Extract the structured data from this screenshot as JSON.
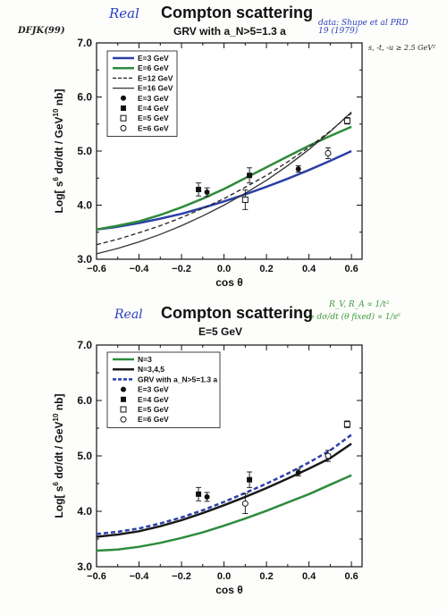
{
  "annotations": {
    "top_left": "DFJK(99)",
    "top_real": "Real",
    "top_right": "data: Shupe et al PRD 19 (1979)",
    "top_right2": "s, -t, -u ≥ 2.5 GeV²",
    "bottom_real": "Real",
    "bottom_right": "R_V, R_A ∝ 1/t²",
    "bottom_right2": "⇒ dσ/dt (θ fixed) ∝ 1/s⁶"
  },
  "chart_data": [
    {
      "type": "line",
      "title": "Compton scattering",
      "subtitle": "GRV with a_N>5=1.3 a",
      "xlabel": "cos θ",
      "ylabel": "Log[ s⁶ dσ/dt / GeV¹⁰ nb]",
      "xlim": [
        -0.6,
        0.65
      ],
      "ylim": [
        3.0,
        7.0
      ],
      "xticks": [
        "−0.6",
        "−0.4",
        "−0.2",
        "0.0",
        "0.2",
        "0.4",
        "0.6"
      ],
      "yticks": [
        "3.0",
        "4.0",
        "5.0",
        "6.0",
        "7.0"
      ],
      "legend_position": "top-left",
      "legend": [
        "E=3 GeV",
        "E=6 GeV",
        "E=12 GeV",
        "E=16 GeV",
        "E=3 GeV",
        "E=4 GeV",
        "E=5 GeV",
        "E=6 GeV"
      ],
      "x": [
        -0.6,
        -0.5,
        -0.4,
        -0.3,
        -0.2,
        -0.1,
        0.0,
        0.1,
        0.2,
        0.3,
        0.4,
        0.5,
        0.6
      ],
      "series": [
        {
          "name": "E=3 GeV",
          "style": "solid",
          "color": "#2b3fa8",
          "width": 2.5,
          "values": [
            3.55,
            3.6,
            3.67,
            3.75,
            3.84,
            3.95,
            4.07,
            4.2,
            4.34,
            4.49,
            4.65,
            4.82,
            5.0
          ]
        },
        {
          "name": "E=6 GeV",
          "style": "solid",
          "color": "#2e8b3c",
          "width": 2.5,
          "values": [
            3.55,
            3.62,
            3.7,
            3.82,
            3.96,
            4.12,
            4.3,
            4.5,
            4.7,
            4.9,
            5.1,
            5.28,
            5.45
          ]
        },
        {
          "name": "E=12 GeV",
          "style": "dashed",
          "color": "#222222",
          "width": 1.3,
          "values": [
            3.27,
            3.37,
            3.49,
            3.62,
            3.77,
            3.94,
            4.12,
            4.33,
            4.55,
            4.8,
            5.07,
            5.37,
            5.7
          ]
        },
        {
          "name": "E=16 GeV",
          "style": "solid",
          "color": "#333333",
          "width": 1.3,
          "values": [
            3.1,
            3.2,
            3.32,
            3.46,
            3.62,
            3.8,
            4.0,
            4.22,
            4.46,
            4.73,
            5.03,
            5.36,
            5.72
          ]
        }
      ],
      "points": [
        {
          "label": "E=3 GeV",
          "marker": "filled-circle",
          "x": -0.08,
          "y": 4.24,
          "err": 0.08
        },
        {
          "label": "E=4 GeV",
          "marker": "filled-square",
          "x": -0.12,
          "y": 4.29,
          "err": 0.12
        },
        {
          "label": "E=4 GeV",
          "marker": "filled-square",
          "x": 0.12,
          "y": 4.55,
          "err": 0.14
        },
        {
          "label": "E=5 GeV",
          "marker": "open-square",
          "x": 0.1,
          "y": 4.1,
          "err": 0.18
        },
        {
          "label": "E=3 GeV",
          "marker": "filled-circle",
          "x": 0.35,
          "y": 4.67,
          "err": 0.06
        },
        {
          "label": "E=6 GeV",
          "marker": "open-circle",
          "x": 0.49,
          "y": 4.96,
          "err": 0.1
        },
        {
          "label": "E=5 GeV",
          "marker": "open-square",
          "x": 0.58,
          "y": 5.56,
          "err": 0.06
        }
      ]
    },
    {
      "type": "line",
      "title": "Compton scattering",
      "subtitle": "E=5 GeV",
      "xlabel": "cos θ",
      "ylabel": "Log[ s⁶ dσ/dt / GeV¹⁰ nb]",
      "xlim": [
        -0.6,
        0.65
      ],
      "ylim": [
        3.0,
        7.0
      ],
      "xticks": [
        "−0.6",
        "−0.4",
        "−0.2",
        "0.0",
        "0.2",
        "0.4",
        "0.6"
      ],
      "yticks": [
        "3.0",
        "4.0",
        "5.0",
        "6.0",
        "7.0"
      ],
      "legend_position": "top-left",
      "legend": [
        "N=3",
        "N=3,4,5",
        "GRV with a_N>5=1.3 a",
        "E=3 GeV",
        "E=4 GeV",
        "E=5 GeV",
        "E=6 GeV"
      ],
      "x": [
        -0.6,
        -0.5,
        -0.4,
        -0.3,
        -0.2,
        -0.1,
        0.0,
        0.1,
        0.2,
        0.3,
        0.4,
        0.5,
        0.6
      ],
      "series": [
        {
          "name": "N=3",
          "style": "solid",
          "color": "#2e8b3c",
          "width": 2.5,
          "values": [
            3.29,
            3.31,
            3.36,
            3.43,
            3.52,
            3.62,
            3.74,
            3.87,
            4.01,
            4.16,
            4.31,
            4.48,
            4.65
          ]
        },
        {
          "name": "N=3,4,5",
          "style": "solid",
          "color": "#1a1a1a",
          "width": 2.5,
          "values": [
            3.54,
            3.58,
            3.64,
            3.73,
            3.84,
            3.97,
            4.11,
            4.26,
            4.42,
            4.59,
            4.77,
            4.96,
            5.22
          ]
        },
        {
          "name": "GRV with a_N>5=1.3 a",
          "style": "dashed",
          "color": "#2b3fa8",
          "width": 2.5,
          "values": [
            3.59,
            3.63,
            3.69,
            3.78,
            3.89,
            4.02,
            4.17,
            4.33,
            4.5,
            4.68,
            4.88,
            5.1,
            5.38
          ]
        }
      ],
      "points": [
        {
          "label": "E=3 GeV",
          "marker": "filled-circle",
          "x": -0.08,
          "y": 4.26,
          "err": 0.08
        },
        {
          "label": "E=4 GeV",
          "marker": "filled-square",
          "x": -0.12,
          "y": 4.31,
          "err": 0.12
        },
        {
          "label": "E=4 GeV",
          "marker": "filled-square",
          "x": 0.12,
          "y": 4.57,
          "err": 0.14
        },
        {
          "label": "E=5 GeV",
          "marker": "open-circle",
          "x": 0.1,
          "y": 4.14,
          "err": 0.18
        },
        {
          "label": "E=3 GeV",
          "marker": "filled-circle",
          "x": 0.35,
          "y": 4.7,
          "err": 0.06
        },
        {
          "label": "E=6 GeV",
          "marker": "open-circle",
          "x": 0.49,
          "y": 5.0,
          "err": 0.1
        },
        {
          "label": "E=5 GeV",
          "marker": "open-square",
          "x": 0.58,
          "y": 5.57,
          "err": 0.06
        }
      ]
    }
  ]
}
